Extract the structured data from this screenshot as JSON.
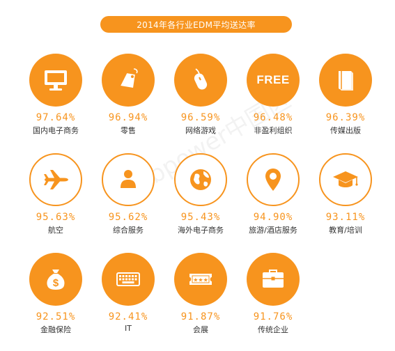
{
  "title": "2014年各行业EDM平均送达率",
  "colors": {
    "accent": "#f7941e",
    "label": "#333333"
  },
  "watermark": "webpower中国区",
  "items": [
    {
      "pct": "97.64%",
      "label": "国内电子商务",
      "icon": "monitor-icon",
      "style": "filled"
    },
    {
      "pct": "96.94%",
      "label": "零售",
      "icon": "tag-icon",
      "style": "filled"
    },
    {
      "pct": "96.59%",
      "label": "网络游戏",
      "icon": "mouse-icon",
      "style": "filled"
    },
    {
      "pct": "96.48%",
      "label": "非盈利组织",
      "icon": "free-text-icon",
      "style": "filled",
      "icon_text": "FREE"
    },
    {
      "pct": "96.39%",
      "label": "传媒出版",
      "icon": "book-icon",
      "style": "filled"
    },
    {
      "pct": "95.63%",
      "label": "航空",
      "icon": "airplane-icon",
      "style": "outline"
    },
    {
      "pct": "95.62%",
      "label": "综合服务",
      "icon": "person-icon",
      "style": "outline"
    },
    {
      "pct": "95.43%",
      "label": "海外电子商务",
      "icon": "globe-icon",
      "style": "outline"
    },
    {
      "pct": "94.90%",
      "label": "旅游/酒店服务",
      "icon": "location-pin-icon",
      "style": "outline"
    },
    {
      "pct": "93.11%",
      "label": "教育/培训",
      "icon": "graduation-cap-icon",
      "style": "outline"
    },
    {
      "pct": "92.51%",
      "label": "金融保险",
      "icon": "money-bag-icon",
      "style": "filled"
    },
    {
      "pct": "92.41%",
      "label": "IT",
      "icon": "keyboard-icon",
      "style": "filled"
    },
    {
      "pct": "91.87%",
      "label": "会展",
      "icon": "ticket-icon",
      "style": "filled"
    },
    {
      "pct": "91.76%",
      "label": "传统企业",
      "icon": "briefcase-icon",
      "style": "filled"
    }
  ]
}
